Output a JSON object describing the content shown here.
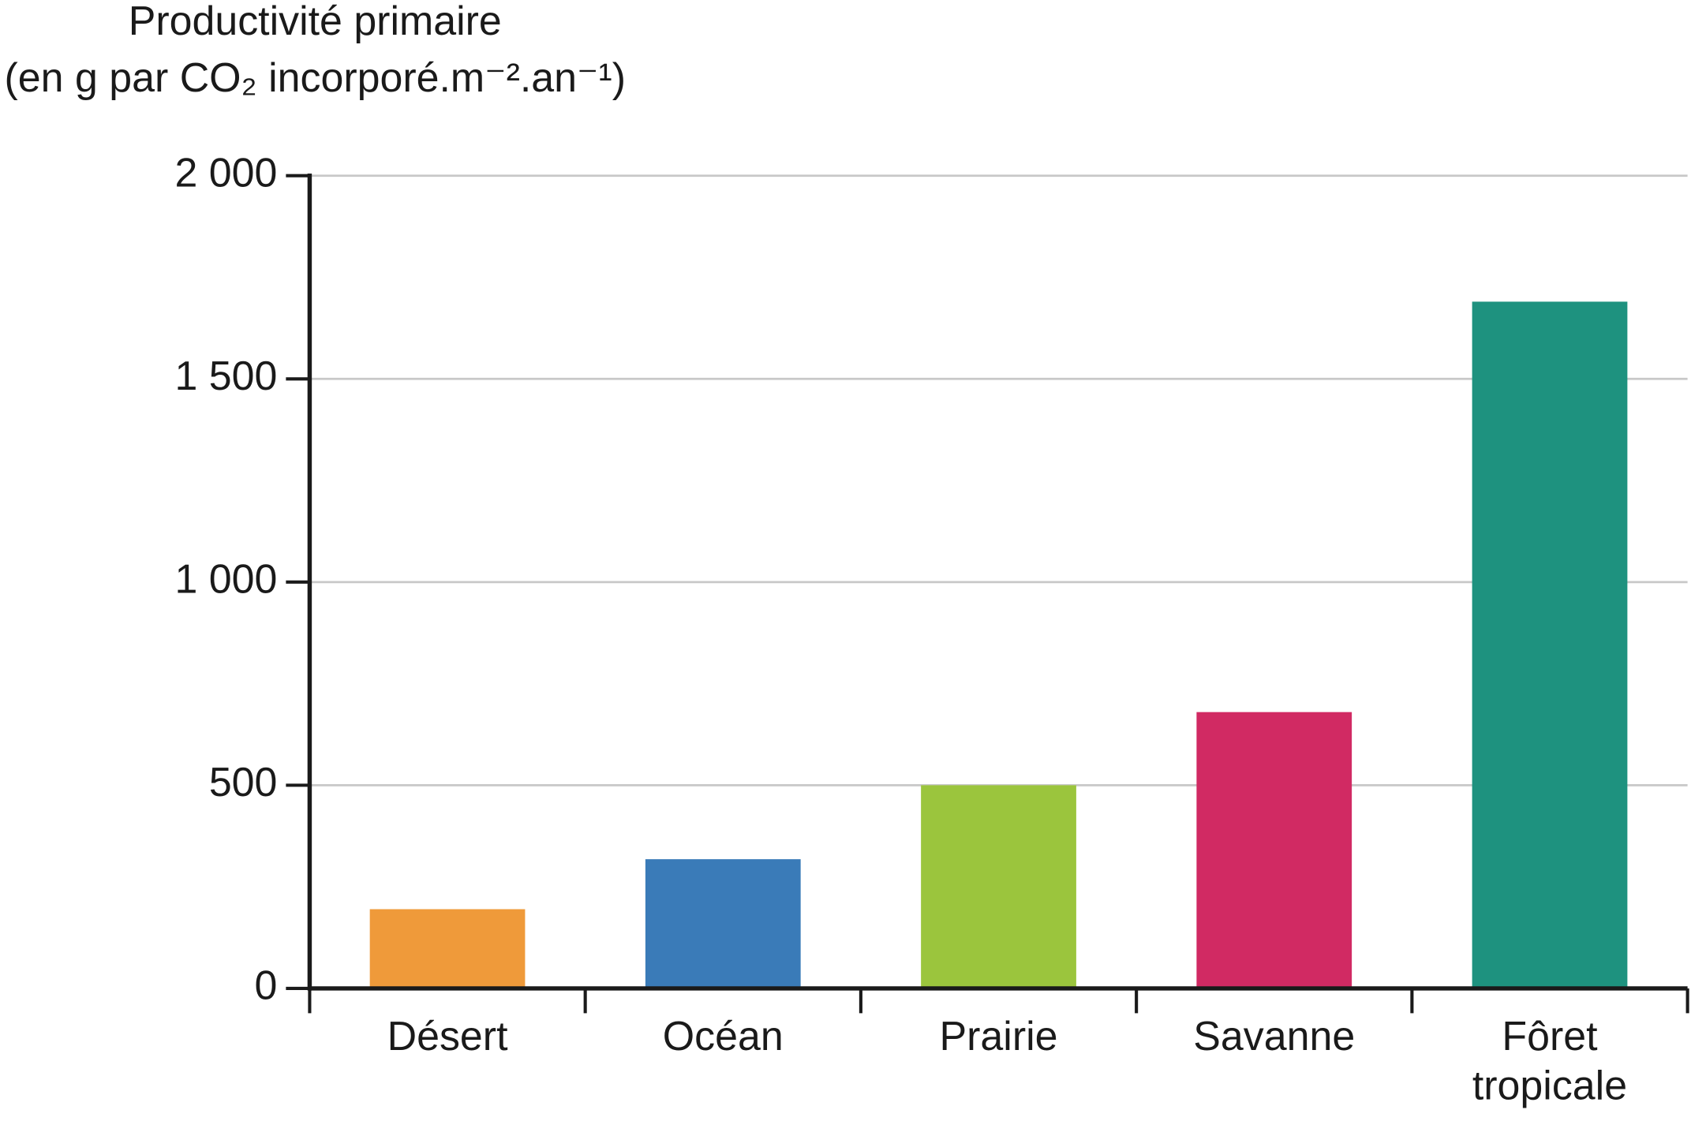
{
  "chart_data": {
    "type": "bar",
    "y_label": [
      "Productivité primaire",
      "(en g par CO₂ incorporé.m⁻².an⁻¹)"
    ],
    "categories": [
      "Désert",
      "Océan",
      "Prairie",
      "Savanne",
      "Fôret tropicale"
    ],
    "values": [
      195,
      318,
      500,
      680,
      1690
    ],
    "colors": [
      "#ef9a3a",
      "#3a7bb8",
      "#9bc53d",
      "#d12a63",
      "#1e927f"
    ],
    "ylim": [
      0,
      2000
    ],
    "yticks": [
      0,
      500,
      {
        "value": 1000,
        "label": "1 000"
      },
      {
        "value": 1500,
        "label": "1 500"
      },
      {
        "value": 2000,
        "label": "2 000"
      }
    ],
    "grid": true
  }
}
